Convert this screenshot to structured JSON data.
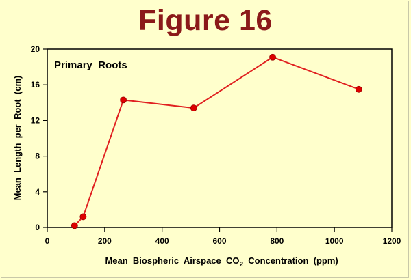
{
  "title": "Figure 16",
  "chart_data": {
    "type": "line",
    "annotation": "Primary  Roots",
    "xlabel_parts": [
      "Mean  Biospheric  Airspace  CO",
      "2",
      "  Concentration  (ppm)"
    ],
    "ylabel": "Mean  Length  per  Root  (cm)",
    "xlim": [
      0,
      1200
    ],
    "ylim": [
      0,
      20
    ],
    "xticks": [
      0,
      200,
      400,
      600,
      800,
      1000,
      1200
    ],
    "yticks": [
      0,
      4,
      8,
      12,
      16,
      20
    ],
    "grid": false,
    "series": [
      {
        "x": [
          95,
          125,
          265,
          510,
          785,
          1085
        ],
        "y": [
          0.2,
          1.2,
          14.3,
          13.4,
          19.1,
          15.5
        ]
      }
    ],
    "colors": {
      "line": "#e02020",
      "marker": "#dd0000"
    }
  }
}
